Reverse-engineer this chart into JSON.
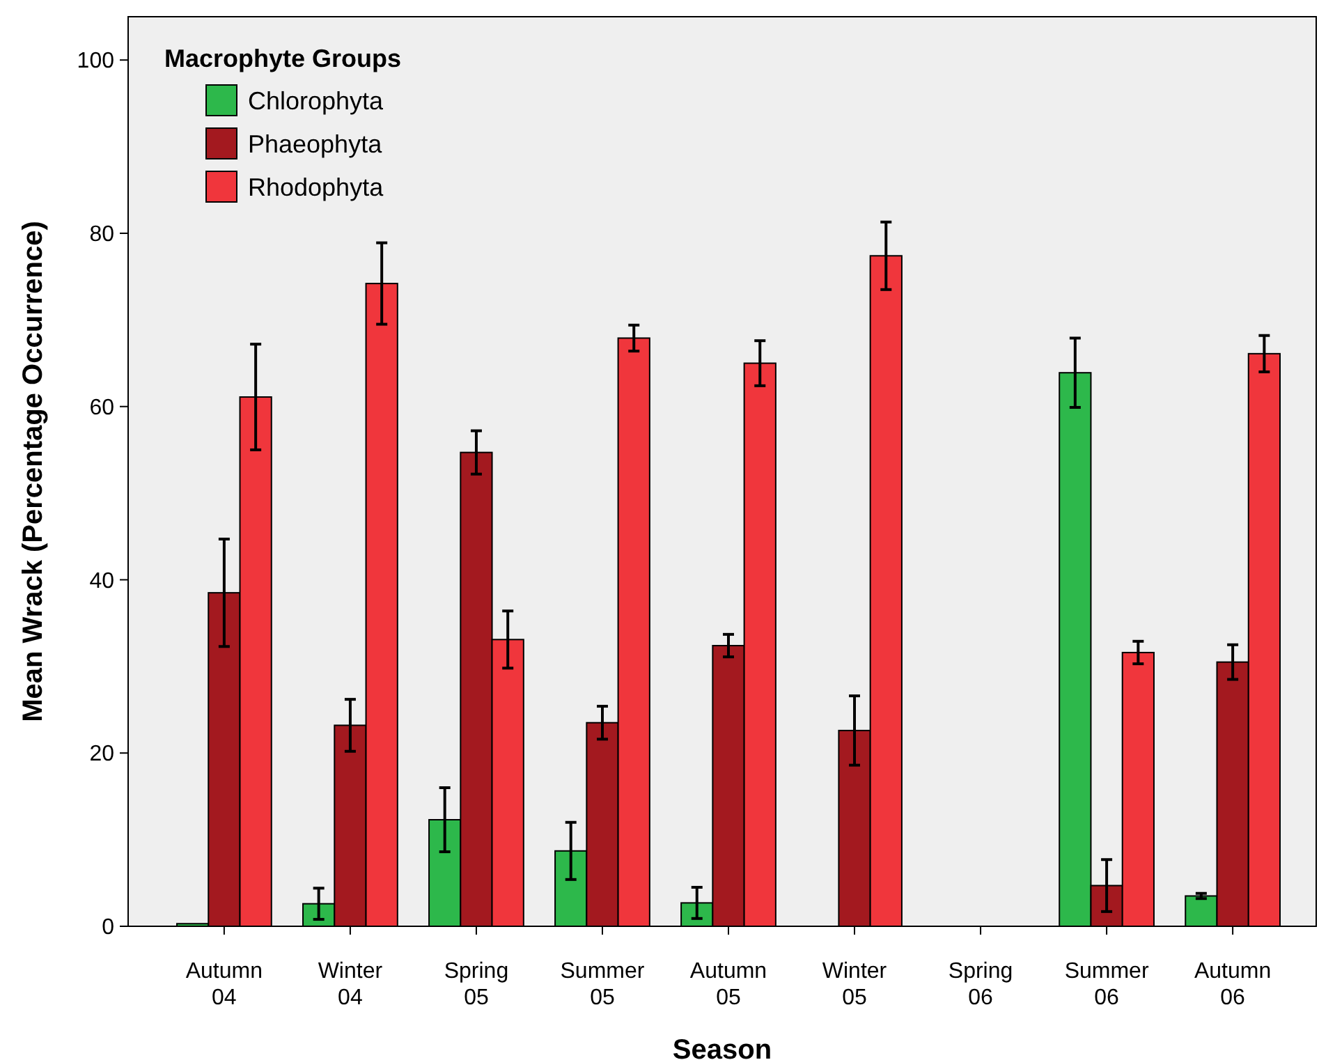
{
  "chart_data": {
    "type": "bar",
    "xlabel": "Season",
    "ylabel": "Mean Wrack (Percentage Occurrence)",
    "legend_title": "Macrophyte Groups",
    "legend": "top left",
    "grid": false,
    "categories": [
      "Autumn\n04",
      "Winter\n04",
      "Spring\n05",
      "Summer\n05",
      "Autumn\n05",
      "Winter\n05",
      "Spring\n06",
      "Summer\n06",
      "Autumn\n06"
    ],
    "ylim": [
      0,
      105
    ],
    "yticks": [
      0,
      20,
      40,
      60,
      80,
      100
    ],
    "series": [
      {
        "name": "Chlorophyta",
        "color": "#2db84b",
        "values": [
          0.3,
          2.6,
          12.3,
          8.7,
          2.7,
          0,
          0,
          63.9,
          3.5
        ],
        "errors": [
          null,
          1.8,
          3.7,
          3.3,
          1.8,
          null,
          null,
          4,
          0.3
        ]
      },
      {
        "name": "Phaeophyta",
        "color": "#a3191f",
        "values": [
          38.5,
          23.2,
          54.7,
          23.5,
          32.4,
          22.6,
          0,
          4.7,
          30.5
        ],
        "errors": [
          6.2,
          3,
          2.5,
          1.9,
          1.3,
          4,
          null,
          3,
          2
        ]
      },
      {
        "name": "Rhodophyta",
        "color": "#f0363c",
        "values": [
          61.1,
          74.2,
          33.1,
          67.9,
          65,
          77.4,
          0,
          31.6,
          66.1
        ],
        "errors": [
          6.1,
          4.7,
          3.3,
          1.5,
          2.6,
          3.9,
          null,
          1.3,
          2.1
        ]
      }
    ]
  }
}
